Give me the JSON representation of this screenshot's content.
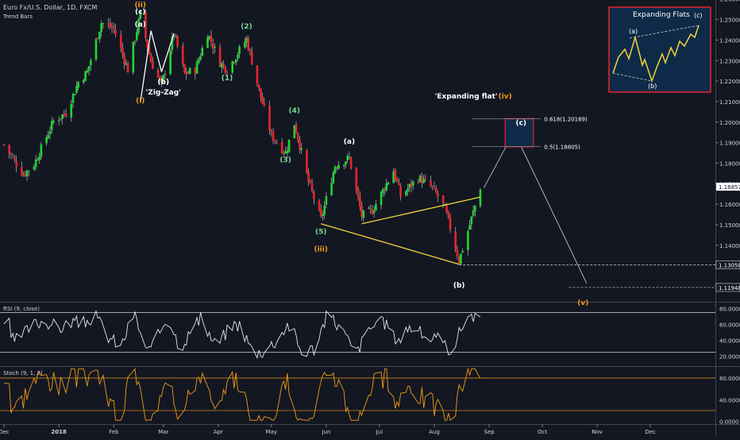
{
  "header": {
    "symbol_title": "Euro Fx/U.S. Dollar, 1D, FXCM",
    "indicator_label": "Trend Bars"
  },
  "colors": {
    "background": "#131722",
    "bull": "#22d431",
    "bear": "#e5262b",
    "wave_line": "#ffffff",
    "trend_line": "#f5d33b",
    "inset_border": "#e5262b",
    "inset_bg": "#0d2a48",
    "rsi_line": "#e6e6e6",
    "stoch_line": "#f39c12",
    "axis_text": "#d1d4dc",
    "price_tag_bg": "#ffffff"
  },
  "chart_data": [
    {
      "type": "candlestick",
      "title": "Euro Fx/U.S. Dollar, 1D, FXCM",
      "y_axis_ticks": [
        "1.26000",
        "1.25000",
        "1.24000",
        "1.23000",
        "1.22000",
        "1.21000",
        "1.20000",
        "1.19000",
        "1.18000",
        "1.17000",
        "1.16000",
        "1.15000",
        "1.14000"
      ],
      "ylim": [
        1.1125,
        1.2595
      ],
      "x_axis_ticks": [
        "Dec",
        "2018",
        "Feb",
        "Mar",
        "Apr",
        "May",
        "Jun",
        "Jul",
        "Aug",
        "Sep",
        "Oct",
        "Nov",
        "Dec"
      ],
      "date_range": [
        "2017-12-01",
        "2018-12-31"
      ],
      "last_price_label": "1.16857",
      "last_price": 1.16857,
      "price_levels": [
        {
          "label": "1.13050",
          "value": 1.1305
        },
        {
          "label": "1.11948",
          "value": 1.11948
        }
      ],
      "fib_levels": [
        {
          "label": "0.618(1.20169)",
          "value": 1.20169
        },
        {
          "label": "0.5(1.18805)",
          "value": 1.18805
        }
      ],
      "wave_labels": [
        {
          "text": "(ii)",
          "date": "2018-02-16",
          "price": 1.256,
          "color": "#f39c12"
        },
        {
          "text": "(a)",
          "date": "2018-02-16",
          "price": 1.2465,
          "color": "#ffffff"
        },
        {
          "text": "(c)",
          "date": "2018-02-16",
          "price": 1.2527,
          "color": "#ffffff"
        },
        {
          "text": "(b)",
          "date": "2018-03-01",
          "price": 1.2185,
          "color": "#ffffff"
        },
        {
          "text": "'Zig-Zag'",
          "date": "2018-03-01",
          "price": 1.2135,
          "color": "#ffffff"
        },
        {
          "text": "(i)",
          "date": "2018-02-16",
          "price": 1.2095,
          "color": "#f39c12"
        },
        {
          "text": "(2)",
          "date": "2018-04-17",
          "price": 1.2455,
          "color": "#7bd88f"
        },
        {
          "text": "(1)",
          "date": "2018-04-06",
          "price": 1.2205,
          "color": "#7bd88f"
        },
        {
          "text": "(4)",
          "date": "2018-05-14",
          "price": 1.2045,
          "color": "#7bd88f"
        },
        {
          "text": "(3)",
          "date": "2018-05-09",
          "price": 1.1805,
          "color": "#7bd88f"
        },
        {
          "text": "(5)",
          "date": "2018-05-29",
          "price": 1.1455,
          "color": "#7bd88f"
        },
        {
          "text": "(iii)",
          "date": "2018-05-29",
          "price": 1.137,
          "color": "#f39c12"
        },
        {
          "text": "(a)",
          "date": "2018-06-14",
          "price": 1.1895,
          "color": "#ffffff"
        },
        {
          "text": "(b)",
          "date": "2018-08-15",
          "price": 1.1195,
          "color": "#ffffff"
        },
        {
          "text": "'Expanding flat'",
          "date": "2018-08-19",
          "price": 1.2115,
          "color": "#ffffff"
        },
        {
          "text": "(iv)",
          "date": "2018-09-10",
          "price": 1.2115,
          "color": "#f39c12"
        },
        {
          "text": "(c)",
          "date": "2018-09-19",
          "price": 1.1985,
          "color": "#ffffff"
        },
        {
          "text": "(v)",
          "date": "2018-10-24",
          "price": 1.111,
          "color": "#f39c12"
        }
      ]
    },
    {
      "type": "line",
      "title": "RSI (9, close)",
      "y_axis_ticks": [
        "80.0000",
        "60.0000",
        "40.0000",
        "20.0000"
      ],
      "ylim": [
        7.5,
        88.5
      ],
      "levels": [
        75,
        25
      ]
    },
    {
      "type": "line",
      "title": "Stoch (9, 1, 2)",
      "y_axis_ticks": [
        "80.0000",
        "40.0000",
        "0.0000"
      ],
      "ylim": [
        -5,
        102
      ],
      "levels": [
        80,
        20
      ]
    }
  ],
  "inset": {
    "title": "Expanding Flats",
    "labels": [
      "(a)",
      "(b)",
      "(c)"
    ]
  }
}
